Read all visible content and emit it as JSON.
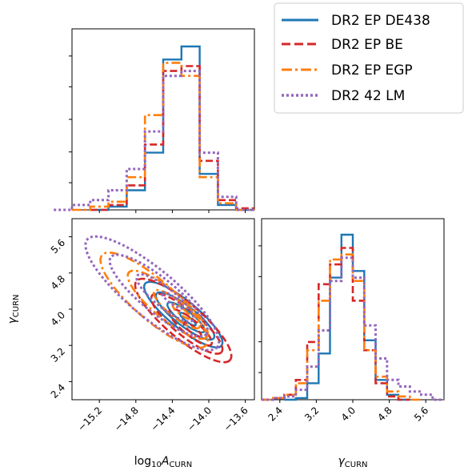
{
  "chart_data": {
    "type": "corner",
    "x_axis_label": {
      "base": "log",
      "sub1": "10",
      "var": "A",
      "sub2": "CURN"
    },
    "y_axis_label": {
      "var": "γ",
      "sub": "CURN"
    },
    "param1": {
      "ticks": [
        "−15.2",
        "−14.8",
        "−14.4",
        "−14.0",
        "−13.6"
      ],
      "tick_values": [
        -15.2,
        -14.8,
        -14.4,
        -14.0,
        -13.6
      ],
      "range": [
        -15.5,
        -13.5
      ]
    },
    "param2": {
      "ticks": [
        "2.4",
        "3.2",
        "4.0",
        "4.8",
        "5.6"
      ],
      "tick_values": [
        2.4,
        3.2,
        4.0,
        4.8,
        5.6
      ],
      "range": [
        2.0,
        6.0
      ]
    },
    "grid": false,
    "legend": {
      "position": "top-right",
      "entries": [
        {
          "label": "DR2 EP DE438",
          "color": "#1f77b4",
          "style": "solid"
        },
        {
          "label": "DR2 EP BE",
          "color": "#d62728",
          "style": "dashed"
        },
        {
          "label": "DR2 EP EGP",
          "color": "#ff7f0e",
          "style": "dashdot"
        },
        {
          "label": "DR2 42 LM",
          "color": "#9467bd",
          "style": "dotted"
        }
      ]
    },
    "series": [
      {
        "name": "DR2 EP DE438",
        "color": "#1f77b4",
        "style": "solid",
        "hist_a_bins": [
          -15.1,
          -14.9,
          -14.7,
          -14.5,
          -14.3,
          -14.1,
          -13.9,
          -13.7
        ],
        "hist_a": [
          0.0,
          0.02,
          0.12,
          0.35,
          0.92,
          1.0,
          0.22,
          0.03,
          0.0
        ],
        "hist_g_bins": [
          2.75,
          3.0,
          3.25,
          3.5,
          3.75,
          4.0,
          4.25,
          4.5,
          4.75,
          5.0
        ],
        "hist_g": [
          0.0,
          0.01,
          0.1,
          0.28,
          0.74,
          1.0,
          0.78,
          0.36,
          0.12,
          0.03,
          0.0
        ],
        "contours": [
          {
            "center": [
              -14.23,
              3.78
            ],
            "rx": 0.09,
            "ry": 0.14
          },
          {
            "center": [
              -14.25,
              3.82
            ],
            "rx": 0.21,
            "ry": 0.33
          },
          {
            "center": [
              -14.26,
              3.85
            ],
            "rx": 0.33,
            "ry": 0.52
          },
          {
            "center": [
              -14.28,
              3.88
            ],
            "rx": 0.44,
            "ry": 0.72
          }
        ]
      },
      {
        "name": "DR2 EP BE",
        "color": "#d62728",
        "style": "dashed",
        "hist_a_bins": [
          -15.1,
          -14.9,
          -14.7,
          -14.5,
          -14.3,
          -14.1,
          -13.9,
          -13.7
        ],
        "hist_a": [
          0.0,
          0.03,
          0.15,
          0.4,
          0.85,
          0.88,
          0.3,
          0.06,
          0.01
        ],
        "hist_g_bins": [
          2.25,
          2.5,
          2.75,
          3.0,
          3.25,
          3.5,
          3.75,
          4.0,
          4.25,
          4.5,
          4.75,
          5.0
        ],
        "hist_g": [
          0.0,
          0.01,
          0.03,
          0.12,
          0.35,
          0.7,
          0.82,
          0.92,
          0.6,
          0.3,
          0.1,
          0.02,
          0.0
        ],
        "contours": [
          {
            "center": [
              -14.18,
              3.55
            ],
            "rx": 0.1,
            "ry": 0.16
          },
          {
            "center": [
              -14.2,
              3.6
            ],
            "rx": 0.24,
            "ry": 0.4
          },
          {
            "center": [
              -14.24,
              3.68
            ],
            "rx": 0.4,
            "ry": 0.66
          },
          {
            "center": [
              -14.28,
              3.75
            ],
            "rx": 0.54,
            "ry": 0.92
          }
        ]
      },
      {
        "name": "DR2 EP EGP",
        "color": "#ff7f0e",
        "style": "dashdot",
        "hist_a_bins": [
          -15.3,
          -15.1,
          -14.9,
          -14.7,
          -14.5,
          -14.3,
          -14.1,
          -13.9,
          -13.7
        ],
        "hist_a": [
          0.0,
          0.02,
          0.05,
          0.2,
          0.58,
          0.9,
          0.82,
          0.2,
          0.04,
          0.0
        ],
        "hist_g_bins": [
          2.25,
          2.5,
          2.75,
          3.0,
          3.25,
          3.5,
          3.75,
          4.0,
          4.25,
          4.5,
          4.75,
          5.0,
          5.25
        ],
        "hist_g": [
          0.0,
          0.01,
          0.03,
          0.1,
          0.3,
          0.6,
          0.85,
          0.88,
          0.72,
          0.3,
          0.14,
          0.05,
          0.02,
          0.0
        ],
        "contours": [
          {
            "center": [
              -14.3,
              3.95
            ],
            "rx": 0.1,
            "ry": 0.16
          },
          {
            "center": [
              -14.35,
              4.0
            ],
            "rx": 0.26,
            "ry": 0.42
          },
          {
            "center": [
              -14.45,
              4.1
            ],
            "rx": 0.45,
            "ry": 0.75
          },
          {
            "center": [
              -14.6,
              4.2
            ],
            "rx": 0.6,
            "ry": 1.05
          }
        ]
      },
      {
        "name": "DR2 42 LM",
        "color": "#9467bd",
        "style": "dotted",
        "hist_a_bins": [
          -15.5,
          -15.3,
          -15.1,
          -14.9,
          -14.7,
          -14.5,
          -14.3,
          -14.1,
          -13.9,
          -13.7
        ],
        "hist_a": [
          0.0,
          0.03,
          0.06,
          0.12,
          0.25,
          0.48,
          0.82,
          0.85,
          0.35,
          0.08,
          0.0
        ],
        "hist_g_bins": [
          2.25,
          2.5,
          2.75,
          3.0,
          3.25,
          3.5,
          3.75,
          4.0,
          4.25,
          4.5,
          4.75,
          5.0,
          5.25,
          5.5,
          5.75
        ],
        "hist_g": [
          0.0,
          0.01,
          0.02,
          0.06,
          0.2,
          0.42,
          0.72,
          0.86,
          0.74,
          0.45,
          0.25,
          0.12,
          0.08,
          0.05,
          0.03,
          0.0
        ],
        "contours": [
          {
            "center": [
              -14.4,
              4.2
            ],
            "rx": 0.12,
            "ry": 0.18
          },
          {
            "center": [
              -14.48,
              4.25
            ],
            "rx": 0.32,
            "ry": 0.52
          },
          {
            "center": [
              -14.55,
              4.3
            ],
            "rx": 0.55,
            "ry": 0.9
          },
          {
            "center": [
              -14.62,
              4.35
            ],
            "rx": 0.75,
            "ry": 1.25
          }
        ]
      }
    ]
  }
}
